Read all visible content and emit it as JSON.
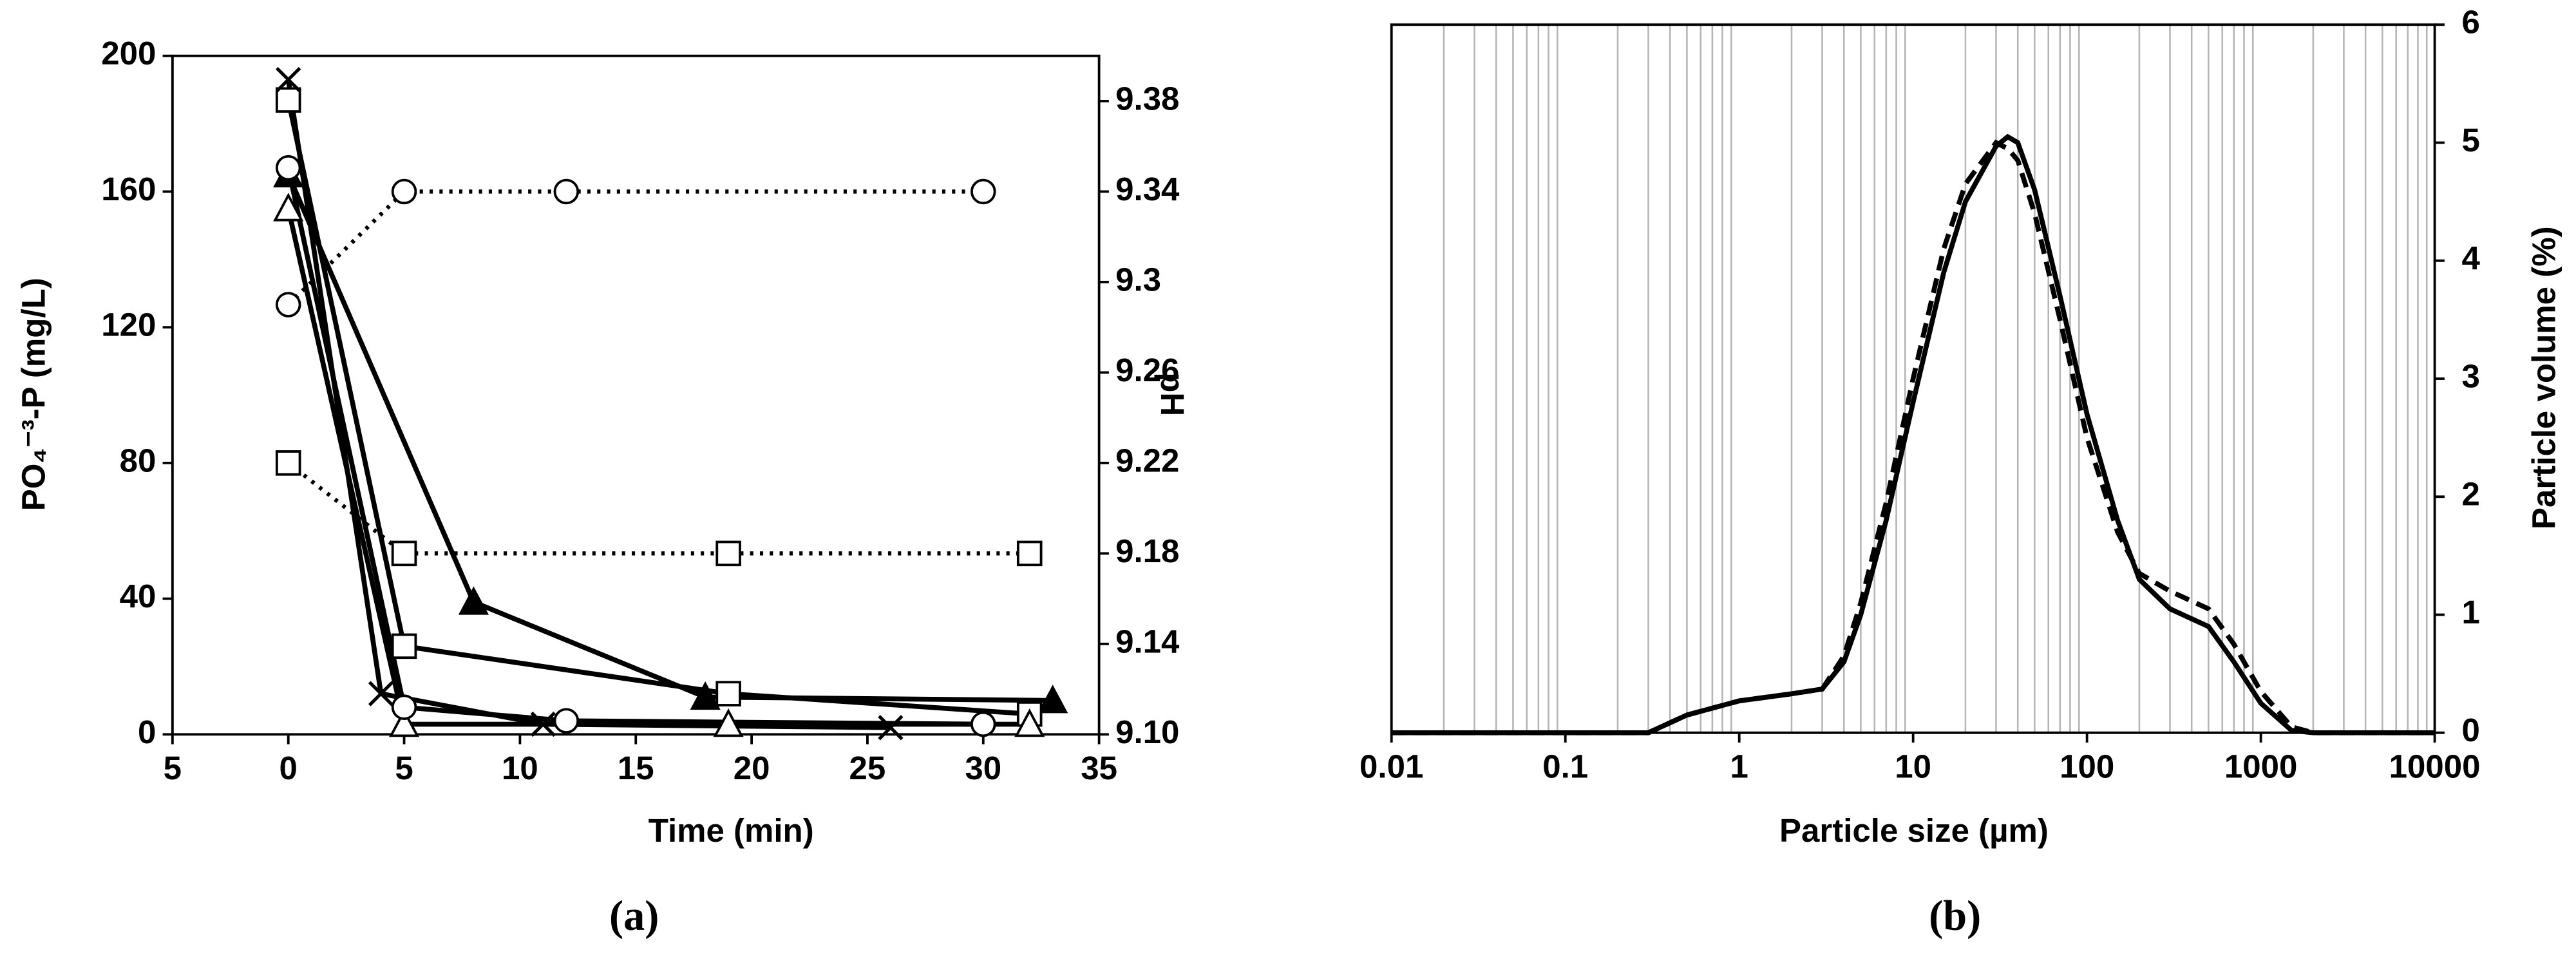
{
  "chart_data": [
    {
      "type": "line",
      "panel_label": "(a)",
      "x_label": "Time (min)",
      "y_label": "PO₄⁻³-P (mg/L)",
      "y2_label": "pH",
      "xlim": [
        -5,
        35
      ],
      "xticks": [
        {
          "value": -5,
          "label": "5"
        },
        0,
        5,
        10,
        15,
        20,
        25,
        30,
        35
      ],
      "ylim": [
        0,
        200
      ],
      "yticks": [
        0,
        40,
        80,
        120,
        160,
        200
      ],
      "y2lim": [
        9.1,
        9.4
      ],
      "y2ticks": [
        {
          "value": 9.1,
          "label": "9.10"
        },
        9.14,
        9.18,
        9.22,
        9.26,
        9.3,
        9.34,
        9.38
      ],
      "series": [
        {
          "marker": "triangle-filled",
          "dash": "solid",
          "color": "#000000",
          "x": [
            0,
            8,
            18,
            33
          ],
          "values": [
            165,
            39,
            11,
            10
          ]
        },
        {
          "marker": "square",
          "dash": "solid",
          "color": "#000000",
          "x": [
            0,
            5,
            19,
            32
          ],
          "values": [
            187,
            26,
            12,
            6
          ]
        },
        {
          "marker": "x",
          "dash": "solid",
          "color": "#000000",
          "x": [
            0,
            4,
            11,
            26
          ],
          "values": [
            193,
            12,
            3,
            2
          ]
        },
        {
          "marker": "triangle",
          "dash": "solid",
          "color": "#000000",
          "x": [
            0,
            5,
            19,
            32
          ],
          "values": [
            155,
            3,
            3,
            3
          ]
        },
        {
          "marker": "circle",
          "dash": "solid",
          "color": "#000000",
          "x": [
            0,
            5,
            12,
            30
          ],
          "values": [
            167,
            8,
            4,
            3
          ]
        },
        {
          "marker": "circle",
          "dash": "dotted",
          "color": "#000000",
          "axis": "y2",
          "x": [
            0,
            5,
            12,
            30
          ],
          "values": [
            9.29,
            9.34,
            9.34,
            9.34
          ]
        },
        {
          "marker": "square",
          "dash": "dotted",
          "color": "#000000",
          "axis": "y2",
          "x": [
            0,
            5,
            19,
            32
          ],
          "values": [
            9.22,
            9.18,
            9.18,
            9.18
          ]
        }
      ]
    },
    {
      "type": "line",
      "panel_label": "(b)",
      "x_label": "Particle size (µm)",
      "y_label": "Particle volume (%)",
      "xscale": "log",
      "xlim": [
        0.01,
        10000
      ],
      "xticks": [
        0.01,
        0.1,
        1,
        10,
        100,
        1000,
        10000
      ],
      "ylim": [
        0,
        6
      ],
      "yticks": [
        0,
        1,
        2,
        3,
        4,
        5,
        6
      ],
      "yaxis_side": "right",
      "grid": "minor-x",
      "series": [
        {
          "marker": "none",
          "dash": "solid",
          "color": "#000000",
          "x": [
            0.01,
            0.3,
            0.5,
            1,
            2,
            3,
            4,
            5,
            7,
            10,
            15,
            20,
            30,
            35,
            40,
            50,
            70,
            100,
            150,
            200,
            300,
            500,
            700,
            1000,
            1500,
            2000,
            10000
          ],
          "values": [
            0,
            0,
            0.15,
            0.27,
            0.33,
            0.37,
            0.6,
            1.0,
            1.8,
            2.8,
            3.9,
            4.5,
            4.97,
            5.05,
            5.0,
            4.6,
            3.7,
            2.7,
            1.8,
            1.3,
            1.05,
            0.9,
            0.6,
            0.25,
            0.02,
            0,
            0
          ]
        },
        {
          "marker": "none",
          "dash": "dashed",
          "color": "#000000",
          "x": [
            0.01,
            0.3,
            0.5,
            1,
            2,
            3,
            4,
            5,
            7,
            10,
            15,
            20,
            30,
            35,
            40,
            50,
            70,
            100,
            150,
            200,
            300,
            500,
            700,
            1000,
            1500,
            2000,
            10000
          ],
          "values": [
            0,
            0,
            0.15,
            0.27,
            0.33,
            0.37,
            0.65,
            1.1,
            1.95,
            3.0,
            4.1,
            4.65,
            5.0,
            4.95,
            4.85,
            4.4,
            3.5,
            2.5,
            1.7,
            1.35,
            1.2,
            1.05,
            0.75,
            0.35,
            0.05,
            0,
            0
          ]
        }
      ]
    }
  ]
}
